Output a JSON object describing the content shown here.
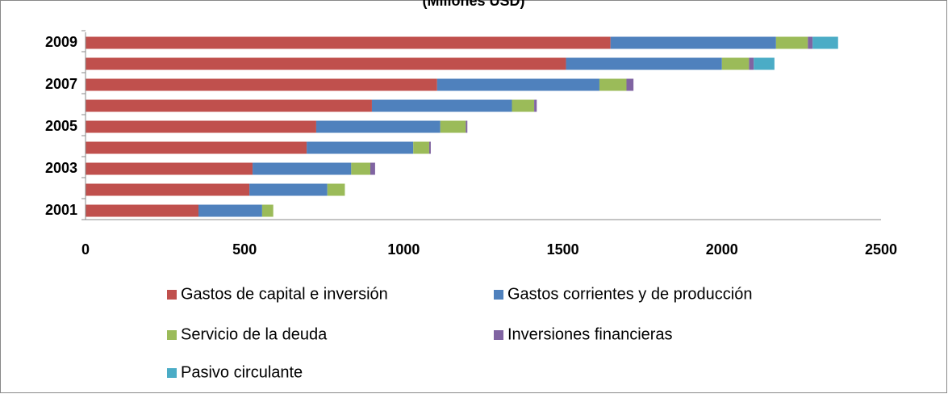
{
  "chart_data": {
    "type": "stacked_barh",
    "title": "(Millones USD)",
    "categories": [
      "2001",
      null,
      "2003",
      null,
      "2005",
      null,
      "2007",
      null,
      "2009"
    ],
    "series": [
      {
        "name": "Gastos de capital e inversión",
        "color": "#C0504D",
        "values": [
          355,
          515,
          525,
          695,
          725,
          900,
          1105,
          1510,
          1650
        ]
      },
      {
        "name": "Gastos corrientes y de producción",
        "color": "#4F81BD",
        "values": [
          200,
          245,
          310,
          335,
          390,
          440,
          510,
          490,
          520
        ]
      },
      {
        "name": "Servicio de la deuda",
        "color": "#9BBB59",
        "values": [
          35,
          55,
          60,
          50,
          80,
          70,
          85,
          85,
          100
        ]
      },
      {
        "name": "Inversiones financieras",
        "color": "#8064A2",
        "values": [
          0,
          0,
          15,
          5,
          5,
          8,
          22,
          15,
          15
        ]
      },
      {
        "name": "Pasivo circulante",
        "color": "#4BACC6",
        "values": [
          0,
          0,
          0,
          0,
          0,
          0,
          0,
          65,
          80
        ]
      }
    ],
    "xlim": [
      0,
      2500
    ],
    "xticks": [
      0,
      500,
      1000,
      1500,
      2000,
      2500
    ],
    "legend": "bottom"
  }
}
